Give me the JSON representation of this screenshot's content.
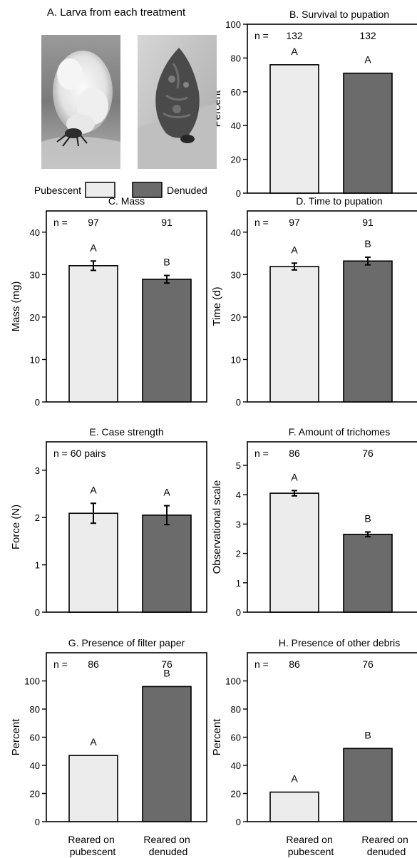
{
  "figure": {
    "panel_a_title": "A. Larva from each treatment",
    "legend": [
      {
        "label": "Pubescent",
        "color": "#ececec"
      },
      {
        "label": "Denuded",
        "color": "#6b6b6b"
      }
    ],
    "bar_colors": {
      "pubescent": "#ececec",
      "denuded": "#6b6b6b"
    },
    "bottom_labels": {
      "left": [
        "Reared on",
        "pubescent"
      ],
      "right": [
        "Reared on",
        "denuded"
      ]
    }
  },
  "chart_data": [
    {
      "id": "B",
      "type": "bar",
      "title": "B. Survival to pupation",
      "ylabel": "Percent",
      "ylim": [
        0,
        100
      ],
      "yticks": [
        0,
        20,
        40,
        60,
        80,
        100
      ],
      "n_prefix": "n =",
      "n_values": [
        "132",
        "132"
      ],
      "values": [
        76,
        71
      ],
      "errors": null,
      "letters": [
        "A",
        "A"
      ]
    },
    {
      "id": "C",
      "type": "bar",
      "title": "C. Mass",
      "ylabel": "Mass (mg)",
      "ylim": [
        0,
        45
      ],
      "yticks": [
        0,
        10,
        20,
        30,
        40
      ],
      "n_prefix": "n =",
      "n_values": [
        "97",
        "91"
      ],
      "values": [
        32.1,
        28.9
      ],
      "errors": [
        1.1,
        0.9
      ],
      "letters": [
        "A",
        "B"
      ]
    },
    {
      "id": "D",
      "type": "bar",
      "title": "D. Time to pupation",
      "ylabel": "Time (d)",
      "ylim": [
        0,
        45
      ],
      "yticks": [
        0,
        10,
        20,
        30,
        40
      ],
      "n_prefix": "n =",
      "n_values": [
        "97",
        "91"
      ],
      "values": [
        31.9,
        33.2
      ],
      "errors": [
        0.8,
        0.9
      ],
      "letters": [
        "A",
        "B"
      ]
    },
    {
      "id": "E",
      "type": "bar",
      "title": "E. Case strength",
      "ylabel": "Force (N)",
      "ylim": [
        0,
        3.6
      ],
      "yticks": [
        0,
        1,
        2,
        3
      ],
      "n_prefix": "n = 60 pairs",
      "n_values": [],
      "values": [
        2.09,
        2.05
      ],
      "errors": [
        0.21,
        0.2
      ],
      "letters": [
        "A",
        "A"
      ]
    },
    {
      "id": "F",
      "type": "bar",
      "title": "F. Amount of trichomes",
      "ylabel": "Observational scale",
      "ylim": [
        0,
        5.8
      ],
      "yticks": [
        0,
        1,
        2,
        3,
        4,
        5
      ],
      "n_prefix": "n =",
      "n_values": [
        "86",
        "76"
      ],
      "values": [
        4.05,
        2.65
      ],
      "errors": [
        0.09,
        0.08
      ],
      "letters": [
        "A",
        "B"
      ]
    },
    {
      "id": "G",
      "type": "bar",
      "title": "G. Presence of filter paper",
      "ylabel": "Percent",
      "ylim": [
        0,
        120
      ],
      "yticks": [
        0,
        20,
        40,
        60,
        80,
        100
      ],
      "n_prefix": "n =",
      "n_values": [
        "86",
        "76"
      ],
      "values": [
        47,
        96
      ],
      "errors": null,
      "letters": [
        "A",
        "B"
      ]
    },
    {
      "id": "H",
      "type": "bar",
      "title": "H. Presence of other debris",
      "ylabel": "Percent",
      "ylim": [
        0,
        120
      ],
      "yticks": [
        0,
        20,
        40,
        60,
        80,
        100
      ],
      "n_prefix": "n =",
      "n_values": [
        "86",
        "76"
      ],
      "values": [
        21,
        52
      ],
      "errors": null,
      "letters": [
        "A",
        "B"
      ]
    }
  ]
}
